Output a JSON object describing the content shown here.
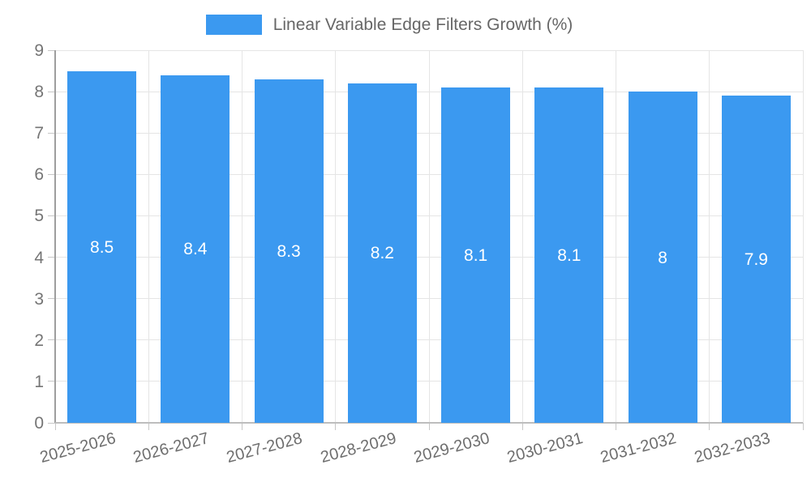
{
  "chart_data": {
    "type": "bar",
    "title": "Linear Variable Edge Filters Growth (%)",
    "categories": [
      "2025-2026",
      "2026-2027",
      "2027-2028",
      "2028-2029",
      "2029-2030",
      "2030-2031",
      "2031-2032",
      "2032-2033"
    ],
    "values": [
      8.5,
      8.4,
      8.3,
      8.2,
      8.1,
      8.1,
      8,
      7.9
    ],
    "value_labels": [
      "8.5",
      "8.4",
      "8.3",
      "8.2",
      "8.1",
      "8.1",
      "8",
      "7.9"
    ],
    "xlabel": "",
    "ylabel": "",
    "ylim": [
      0,
      9
    ],
    "y_ticks": [
      "0",
      "1",
      "2",
      "3",
      "4",
      "5",
      "6",
      "7",
      "8",
      "9"
    ],
    "grid": true,
    "legend_position": "top",
    "x_label_rotation_deg": -15,
    "colors": {
      "bar": "#3B99F0",
      "value_label": "#FFFFFF",
      "axis_text": "#757575",
      "x_axis_text": "#6E6E6E",
      "legend_text": "#666666",
      "gridline": "#E5E5E5",
      "y_axis_line": "#9E9E9E",
      "x_axis_line": "#BDBDBD"
    }
  }
}
